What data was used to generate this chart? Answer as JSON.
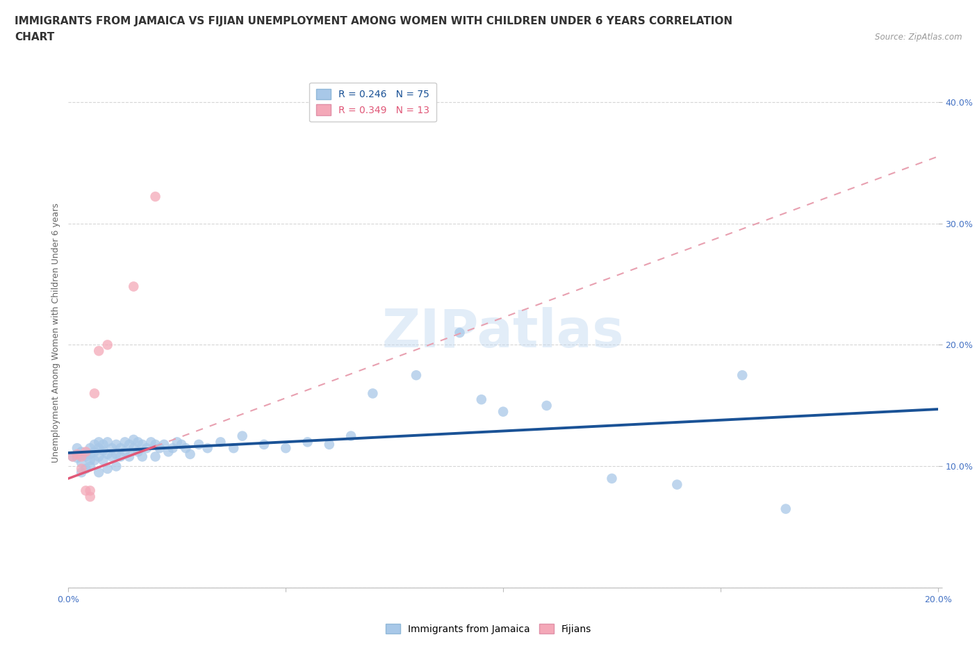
{
  "title_line1": "IMMIGRANTS FROM JAMAICA VS FIJIAN UNEMPLOYMENT AMONG WOMEN WITH CHILDREN UNDER 6 YEARS CORRELATION",
  "title_line2": "CHART",
  "source_text": "Source: ZipAtlas.com",
  "ylabel": "Unemployment Among Women with Children Under 6 years",
  "xlim": [
    0.0,
    0.2
  ],
  "ylim": [
    0.0,
    0.42
  ],
  "xticks": [
    0.0,
    0.05,
    0.1,
    0.15,
    0.2
  ],
  "xtick_labels": [
    "0.0%",
    "",
    "",
    "",
    "20.0%"
  ],
  "ytick_vals": [
    0.0,
    0.1,
    0.2,
    0.3,
    0.4
  ],
  "ytick_labels": [
    "",
    "10.0%",
    "20.0%",
    "30.0%",
    "40.0%"
  ],
  "r_jamaica": 0.246,
  "n_jamaica": 75,
  "r_fijian": 0.349,
  "n_fijian": 13,
  "color_jamaica": "#a8c8e8",
  "color_fijian": "#f4a8b8",
  "trendline_jamaica_color": "#1a5296",
  "trendline_fijian_solid_color": "#e05878",
  "trendline_fijian_dashed_color": "#e8a0b0",
  "background_color": "#ffffff",
  "watermark": "ZIPatlas",
  "jamaica_scatter": [
    [
      0.001,
      0.108
    ],
    [
      0.002,
      0.115
    ],
    [
      0.002,
      0.107
    ],
    [
      0.003,
      0.112
    ],
    [
      0.003,
      0.103
    ],
    [
      0.003,
      0.095
    ],
    [
      0.004,
      0.11
    ],
    [
      0.004,
      0.108
    ],
    [
      0.004,
      0.098
    ],
    [
      0.005,
      0.115
    ],
    [
      0.005,
      0.11
    ],
    [
      0.005,
      0.105
    ],
    [
      0.005,
      0.1
    ],
    [
      0.006,
      0.118
    ],
    [
      0.006,
      0.112
    ],
    [
      0.006,
      0.105
    ],
    [
      0.007,
      0.12
    ],
    [
      0.007,
      0.115
    ],
    [
      0.007,
      0.108
    ],
    [
      0.007,
      0.095
    ],
    [
      0.008,
      0.118
    ],
    [
      0.008,
      0.113
    ],
    [
      0.008,
      0.105
    ],
    [
      0.009,
      0.12
    ],
    [
      0.009,
      0.11
    ],
    [
      0.009,
      0.098
    ],
    [
      0.01,
      0.115
    ],
    [
      0.01,
      0.108
    ],
    [
      0.011,
      0.118
    ],
    [
      0.011,
      0.11
    ],
    [
      0.011,
      0.1
    ],
    [
      0.012,
      0.115
    ],
    [
      0.012,
      0.108
    ],
    [
      0.013,
      0.12
    ],
    [
      0.013,
      0.112
    ],
    [
      0.014,
      0.118
    ],
    [
      0.014,
      0.108
    ],
    [
      0.015,
      0.122
    ],
    [
      0.015,
      0.115
    ],
    [
      0.016,
      0.12
    ],
    [
      0.016,
      0.112
    ],
    [
      0.017,
      0.118
    ],
    [
      0.017,
      0.108
    ],
    [
      0.018,
      0.115
    ],
    [
      0.019,
      0.12
    ],
    [
      0.02,
      0.118
    ],
    [
      0.02,
      0.108
    ],
    [
      0.021,
      0.115
    ],
    [
      0.022,
      0.118
    ],
    [
      0.023,
      0.112
    ],
    [
      0.024,
      0.115
    ],
    [
      0.025,
      0.12
    ],
    [
      0.026,
      0.118
    ],
    [
      0.027,
      0.115
    ],
    [
      0.028,
      0.11
    ],
    [
      0.03,
      0.118
    ],
    [
      0.032,
      0.115
    ],
    [
      0.035,
      0.12
    ],
    [
      0.038,
      0.115
    ],
    [
      0.04,
      0.125
    ],
    [
      0.045,
      0.118
    ],
    [
      0.05,
      0.115
    ],
    [
      0.055,
      0.12
    ],
    [
      0.06,
      0.118
    ],
    [
      0.065,
      0.125
    ],
    [
      0.07,
      0.16
    ],
    [
      0.08,
      0.175
    ],
    [
      0.09,
      0.21
    ],
    [
      0.095,
      0.155
    ],
    [
      0.1,
      0.145
    ],
    [
      0.11,
      0.15
    ],
    [
      0.125,
      0.09
    ],
    [
      0.14,
      0.085
    ],
    [
      0.155,
      0.175
    ],
    [
      0.165,
      0.065
    ]
  ],
  "fijian_scatter": [
    [
      0.001,
      0.108
    ],
    [
      0.002,
      0.11
    ],
    [
      0.003,
      0.098
    ],
    [
      0.003,
      0.108
    ],
    [
      0.004,
      0.112
    ],
    [
      0.004,
      0.08
    ],
    [
      0.005,
      0.08
    ],
    [
      0.005,
      0.075
    ],
    [
      0.006,
      0.16
    ],
    [
      0.007,
      0.195
    ],
    [
      0.009,
      0.2
    ],
    [
      0.015,
      0.248
    ],
    [
      0.02,
      0.322
    ]
  ],
  "grid_color": "#cccccc",
  "title_fontsize": 11,
  "axis_label_fontsize": 9,
  "tick_fontsize": 9,
  "legend_fontsize": 10
}
